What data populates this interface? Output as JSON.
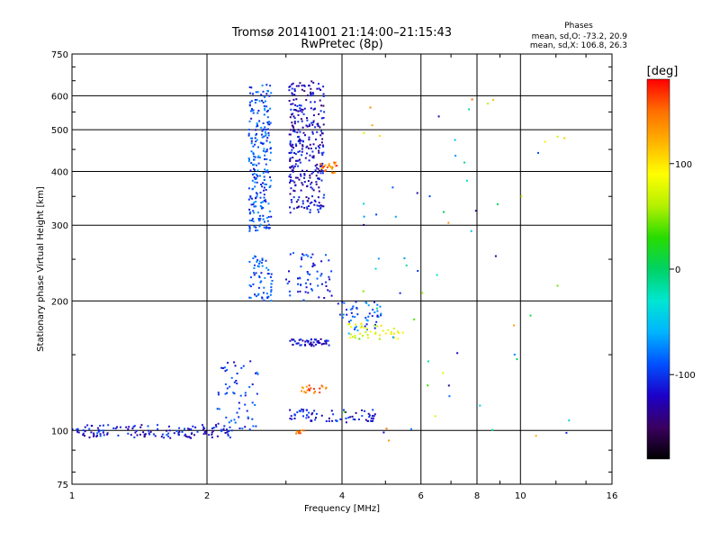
{
  "chart_data": {
    "type": "scatter",
    "title": "Tromsø 20141001 21:14:00–21:15:43",
    "subtitle": "RwPretec (8p)",
    "stats": {
      "heading": "Phases",
      "line1": "mean, sd,O: -73.2, 20.9",
      "line2": "mean, sd,X: 106.8, 26.3"
    },
    "xlabel": "Frequency [MHz]",
    "ylabel": "Stationary phase Virtual Height [km]",
    "xscale": "log",
    "yscale": "log",
    "xlim": [
      1,
      16
    ],
    "ylim": [
      75,
      750
    ],
    "xticks": [
      1,
      2,
      4,
      6,
      8,
      10,
      16
    ],
    "yticks": [
      75,
      100,
      200,
      300,
      400,
      500,
      600,
      750
    ],
    "grid": true,
    "colorbar": {
      "label": "[deg]",
      "range": [
        -180,
        180
      ],
      "ticks": [
        100,
        0,
        -100
      ],
      "colormap": [
        "#000000",
        "#3a0060",
        "#1c00c8",
        "#0050ff",
        "#00b4ff",
        "#00e6d2",
        "#00d264",
        "#28dc00",
        "#b4f000",
        "#ffff00",
        "#ffb400",
        "#ff6e00",
        "#ff0000"
      ]
    },
    "clusters": [
      {
        "name": "O trace low band",
        "xrange": [
          1.0,
          2.3
        ],
        "yrange": [
          96,
          103
        ],
        "phase": -115,
        "count": 140
      },
      {
        "name": "O trace rise",
        "xrange": [
          2.1,
          2.6
        ],
        "yrange": [
          100,
          145
        ],
        "phase": -100,
        "count": 60
      },
      {
        "name": "Column 2.5-2.8 MHz upper",
        "xrange": [
          2.48,
          2.78
        ],
        "yrange": [
          290,
          640
        ],
        "phase": -90,
        "count": 240
      },
      {
        "name": "Column 2.5-2.8 MHz mid",
        "xrange": [
          2.48,
          2.8
        ],
        "yrange": [
          200,
          255
        ],
        "phase": -90,
        "count": 60
      },
      {
        "name": "Column 3.1-3.6 MHz upper",
        "xrange": [
          3.05,
          3.65
        ],
        "yrange": [
          320,
          650
        ],
        "phase": -120,
        "count": 320
      },
      {
        "name": "Column 3.1-3.6 MHz mid",
        "xrange": [
          3.0,
          3.8
        ],
        "yrange": [
          200,
          260
        ],
        "phase": -105,
        "count": 60
      },
      {
        "name": "Trace at 160 km",
        "xrange": [
          3.05,
          3.75
        ],
        "yrange": [
          157,
          163
        ],
        "phase": -120,
        "count": 50
      },
      {
        "name": "Trace at 108 km",
        "xrange": [
          3.05,
          4.8
        ],
        "yrange": [
          105,
          112
        ],
        "phase": -110,
        "count": 70
      },
      {
        "name": "Rising trace",
        "xrange": [
          3.9,
          4.9
        ],
        "yrange": [
          170,
          200
        ],
        "phase": -90,
        "count": 50
      },
      {
        "name": "X trace 170 km",
        "xrange": [
          4.1,
          5.5
        ],
        "yrange": [
          163,
          178
        ],
        "phase": 80,
        "count": 40
      },
      {
        "name": "X trace 400 km",
        "xrange": [
          3.55,
          3.9
        ],
        "yrange": [
          395,
          420
        ],
        "phase": 140,
        "count": 25
      },
      {
        "name": "X scatter 125 km",
        "xrange": [
          3.2,
          3.7
        ],
        "yrange": [
          122,
          128
        ],
        "phase": 150,
        "count": 20
      },
      {
        "name": "X scatter 100 km",
        "xrange": [
          3.15,
          3.3
        ],
        "yrange": [
          98,
          101
        ],
        "phase": 140,
        "count": 8
      },
      {
        "name": "Scattered high freq",
        "xrange": [
          4.0,
          13.0
        ],
        "yrange": [
          90,
          650
        ],
        "phase": 0,
        "count": 70
      }
    ]
  }
}
